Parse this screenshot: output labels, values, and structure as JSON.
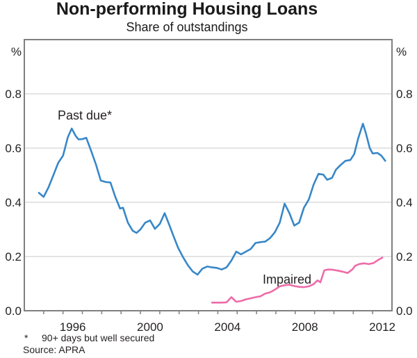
{
  "header": {
    "title": "Non-performing Housing Loans",
    "subtitle": "Share of outstandings"
  },
  "axes": {
    "unit_left": "%",
    "unit_right": "%",
    "y_tick_labels": [
      "0.0",
      "0.2",
      "0.4",
      "0.6",
      "0.8"
    ],
    "y_tick_values": [
      0,
      0.2,
      0.4,
      0.6,
      0.8
    ],
    "grid_values": [
      0.2,
      0.4,
      0.6,
      0.8
    ],
    "x_label_years": [
      "1996",
      "2000",
      "2004",
      "2008",
      "2012"
    ],
    "x_range": [
      1994,
      2013
    ],
    "y_range": [
      0,
      1.0
    ]
  },
  "series_labels": {
    "past_due": "Past due*",
    "impaired": "Impaired"
  },
  "footnotes": {
    "marker": "*",
    "note": "90+ days but well secured",
    "source": "Source: APRA"
  },
  "colors": {
    "past_due": "#3787c8",
    "impaired": "#ee6ba8",
    "grid": "#c9c9c9",
    "frame": "#7f7f7f",
    "text": "#231f20"
  },
  "chart_data": {
    "type": "line",
    "title": "Non-performing Housing Loans",
    "subtitle": "Share of outstandings",
    "ylabel": "%",
    "ylim": [
      0,
      1.0
    ],
    "xlim": [
      1994,
      2013
    ],
    "grid": true,
    "legend_position": "inline-labels",
    "series": [
      {
        "name": "Past due*",
        "color": "#3787c8",
        "points": [
          [
            1994.75,
            0.435
          ],
          [
            1995.0,
            0.42
          ],
          [
            1995.25,
            0.455
          ],
          [
            1995.5,
            0.5
          ],
          [
            1995.75,
            0.545
          ],
          [
            1996.0,
            0.572
          ],
          [
            1996.25,
            0.64
          ],
          [
            1996.45,
            0.672
          ],
          [
            1996.65,
            0.645
          ],
          [
            1996.8,
            0.632
          ],
          [
            1997.0,
            0.633
          ],
          [
            1997.2,
            0.638
          ],
          [
            1997.45,
            0.59
          ],
          [
            1997.7,
            0.54
          ],
          [
            1997.95,
            0.48
          ],
          [
            1998.2,
            0.475
          ],
          [
            1998.45,
            0.473
          ],
          [
            1998.7,
            0.42
          ],
          [
            1998.95,
            0.377
          ],
          [
            1999.1,
            0.38
          ],
          [
            1999.35,
            0.325
          ],
          [
            1999.6,
            0.295
          ],
          [
            1999.8,
            0.287
          ],
          [
            2000.0,
            0.3
          ],
          [
            2000.25,
            0.325
          ],
          [
            2000.5,
            0.333
          ],
          [
            2000.75,
            0.302
          ],
          [
            2001.0,
            0.32
          ],
          [
            2001.25,
            0.36
          ],
          [
            2001.5,
            0.315
          ],
          [
            2001.7,
            0.277
          ],
          [
            2001.95,
            0.232
          ],
          [
            2002.2,
            0.198
          ],
          [
            2002.45,
            0.168
          ],
          [
            2002.7,
            0.145
          ],
          [
            2002.95,
            0.133
          ],
          [
            2003.2,
            0.155
          ],
          [
            2003.45,
            0.163
          ],
          [
            2003.7,
            0.16
          ],
          [
            2003.95,
            0.158
          ],
          [
            2004.2,
            0.152
          ],
          [
            2004.45,
            0.16
          ],
          [
            2004.7,
            0.185
          ],
          [
            2004.95,
            0.218
          ],
          [
            2005.2,
            0.208
          ],
          [
            2005.45,
            0.218
          ],
          [
            2005.7,
            0.228
          ],
          [
            2005.95,
            0.25
          ],
          [
            2006.2,
            0.253
          ],
          [
            2006.45,
            0.255
          ],
          [
            2006.7,
            0.268
          ],
          [
            2006.95,
            0.29
          ],
          [
            2007.2,
            0.325
          ],
          [
            2007.45,
            0.395
          ],
          [
            2007.7,
            0.36
          ],
          [
            2007.95,
            0.314
          ],
          [
            2008.2,
            0.325
          ],
          [
            2008.45,
            0.38
          ],
          [
            2008.7,
            0.41
          ],
          [
            2008.95,
            0.465
          ],
          [
            2009.2,
            0.505
          ],
          [
            2009.45,
            0.502
          ],
          [
            2009.65,
            0.483
          ],
          [
            2009.9,
            0.49
          ],
          [
            2010.1,
            0.52
          ],
          [
            2010.35,
            0.538
          ],
          [
            2010.6,
            0.553
          ],
          [
            2010.85,
            0.556
          ],
          [
            2011.05,
            0.578
          ],
          [
            2011.25,
            0.635
          ],
          [
            2011.5,
            0.69
          ],
          [
            2011.65,
            0.655
          ],
          [
            2011.85,
            0.6
          ],
          [
            2012.0,
            0.58
          ],
          [
            2012.25,
            0.582
          ],
          [
            2012.45,
            0.572
          ],
          [
            2012.65,
            0.553
          ]
        ]
      },
      {
        "name": "Impaired",
        "color": "#ee6ba8",
        "points": [
          [
            2003.7,
            0.03
          ],
          [
            2003.95,
            0.03
          ],
          [
            2004.2,
            0.03
          ],
          [
            2004.45,
            0.031
          ],
          [
            2004.7,
            0.05
          ],
          [
            2004.95,
            0.033
          ],
          [
            2005.2,
            0.036
          ],
          [
            2005.45,
            0.042
          ],
          [
            2005.7,
            0.046
          ],
          [
            2005.95,
            0.05
          ],
          [
            2006.2,
            0.053
          ],
          [
            2006.45,
            0.063
          ],
          [
            2006.7,
            0.068
          ],
          [
            2006.95,
            0.078
          ],
          [
            2007.2,
            0.09
          ],
          [
            2007.45,
            0.094
          ],
          [
            2007.7,
            0.096
          ],
          [
            2007.95,
            0.091
          ],
          [
            2008.2,
            0.088
          ],
          [
            2008.45,
            0.087
          ],
          [
            2008.7,
            0.09
          ],
          [
            2008.95,
            0.098
          ],
          [
            2009.15,
            0.112
          ],
          [
            2009.3,
            0.105
          ],
          [
            2009.5,
            0.149
          ],
          [
            2009.7,
            0.152
          ],
          [
            2009.95,
            0.151
          ],
          [
            2010.2,
            0.148
          ],
          [
            2010.45,
            0.144
          ],
          [
            2010.7,
            0.139
          ],
          [
            2010.95,
            0.152
          ],
          [
            2011.1,
            0.166
          ],
          [
            2011.3,
            0.172
          ],
          [
            2011.55,
            0.175
          ],
          [
            2011.8,
            0.172
          ],
          [
            2012.05,
            0.176
          ],
          [
            2012.3,
            0.188
          ],
          [
            2012.5,
            0.196
          ]
        ]
      }
    ]
  }
}
